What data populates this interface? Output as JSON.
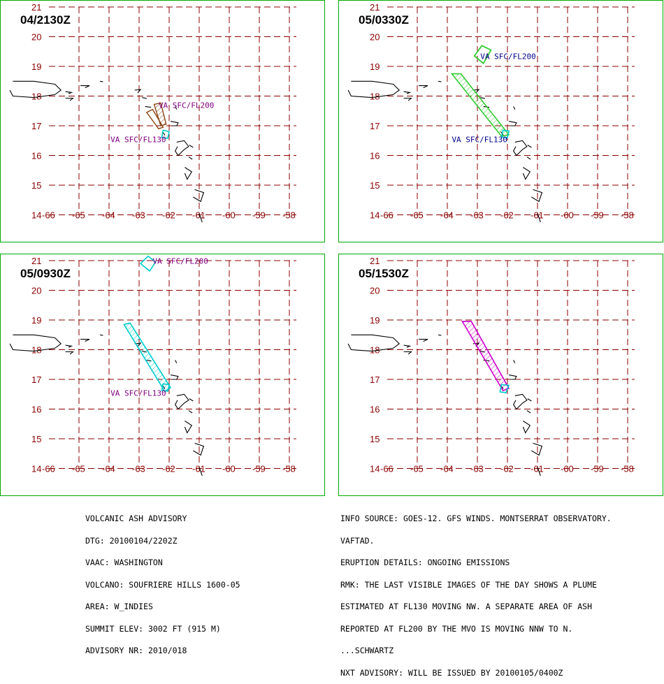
{
  "panels": [
    {
      "title": "04/2130Z",
      "labels": [
        {
          "text": "VA SFC/FL200",
          "color": "#800080"
        },
        {
          "text": "VA SFC/FL130",
          "color": "#800080"
        }
      ],
      "polygon_colors": [
        "#8b4513",
        "#00cccc"
      ]
    },
    {
      "title": "05/0330Z",
      "labels": [
        {
          "text": "VA  SFC/FL200",
          "color": "#00008b"
        },
        {
          "text": "VA  SFC/FL130",
          "color": "#00008b"
        }
      ],
      "polygon_colors": [
        "#33cc33",
        "#00cccc"
      ]
    },
    {
      "title": "05/0930Z",
      "labels": [
        {
          "text": "VA SFC/FL200",
          "color": "#800080"
        },
        {
          "text": "VA SFC/FL130",
          "color": "#800080"
        }
      ],
      "polygon_colors": [
        "#00cccc",
        "#00cccc"
      ]
    },
    {
      "title": "05/1530Z",
      "labels": [],
      "polygon_colors": [
        "#cc00cc",
        "#00cccc"
      ]
    }
  ],
  "axes": {
    "lat_ticks": [
      "21",
      "20",
      "19",
      "18",
      "17",
      "16",
      "15",
      "14"
    ],
    "lon_ticks": [
      "-66",
      "-65",
      "-64",
      "-63",
      "-62",
      "-61",
      "-60",
      "-59",
      "-58"
    ],
    "grid_color": "#8b0000",
    "frame_color": "#00aa00"
  },
  "advisory_left": [
    "VOLCANIC ASH ADVISORY",
    "DTG: 20100104/2202Z",
    "VAAC: WASHINGTON",
    "VOLCANO: SOUFRIERE HILLS 1600-05",
    "AREA: W_INDIES",
    "SUMMIT ELEV: 3002 FT (915 M)",
    "ADVISORY NR: 2010/018"
  ],
  "advisory_right": [
    "INFO SOURCE: GOES-12. GFS WINDS. MONTSERRAT OBSERVATORY.",
    "VAFTAD.",
    "ERUPTION DETAILS: ONGOING EMISSIONS",
    "RMK: THE LAST VISIBLE IMAGES OF THE DAY SHOWS A PLUME",
    "ESTIMATED AT FL130 MOVING NW. A SEPARATE AREA OF ASH",
    "REPORTED AT FL200 BY THE MVO IS MOVING NNW TO N.",
    "...SCHWARTZ",
    "NXT ADVISORY: WILL BE ISSUED BY 20100105/0400Z"
  ]
}
